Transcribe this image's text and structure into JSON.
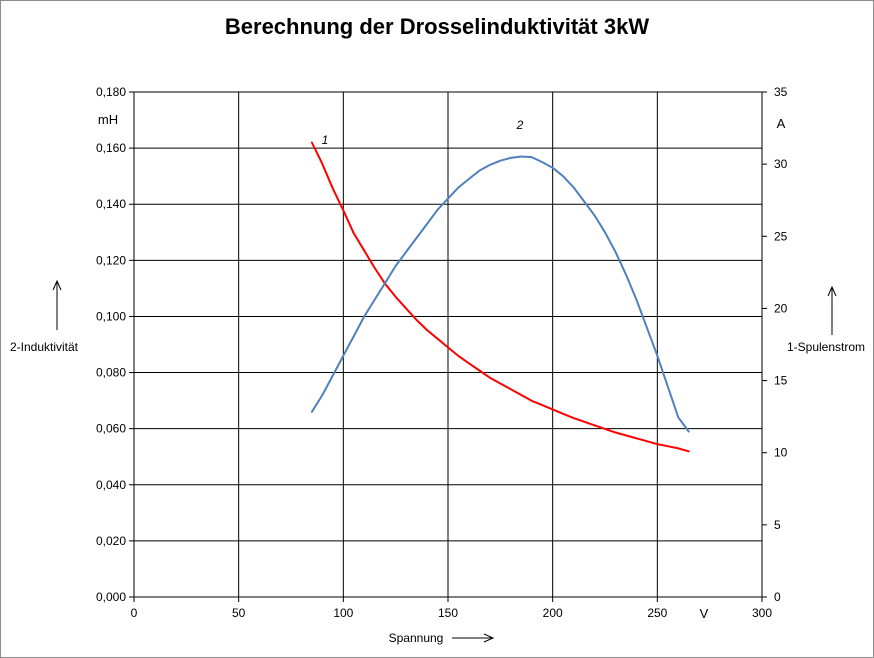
{
  "chart_data": {
    "type": "line",
    "title": "Berechnung der Drosselinduktivität 3kW",
    "xlabel": "Spannung",
    "x_unit": "V",
    "ylabel_left": "2-Induktivität",
    "y_unit_left": "mH",
    "ylabel_right": "1-Spulenstrom",
    "y_unit_right": "A",
    "xlim": [
      0,
      300
    ],
    "ylim_left": [
      0,
      0.18
    ],
    "ylim_right": [
      0,
      35
    ],
    "x_ticks": [
      "0",
      "50",
      "100",
      "150",
      "200",
      "250",
      "300"
    ],
    "y_ticks_left": [
      "0,000",
      "0,020",
      "0,040",
      "0,060",
      "0,080",
      "0,100",
      "0,120",
      "0,140",
      "0,160",
      "0,180"
    ],
    "y_ticks_right": [
      "0",
      "5",
      "10",
      "15",
      "20",
      "25",
      "30",
      "35"
    ],
    "grid": true,
    "series": [
      {
        "name": "1",
        "color": "#ff0000",
        "axis": "right",
        "x": [
          85,
          90,
          95,
          100,
          105,
          110,
          115,
          120,
          125,
          130,
          135,
          140,
          145,
          150,
          155,
          160,
          165,
          170,
          175,
          180,
          185,
          190,
          195,
          200,
          205,
          210,
          215,
          220,
          225,
          230,
          235,
          240,
          245,
          250,
          255,
          260,
          265
        ],
        "values": [
          31.5,
          30.0,
          28.3,
          26.8,
          25.2,
          24.0,
          22.8,
          21.7,
          20.8,
          20.0,
          19.2,
          18.5,
          17.9,
          17.3,
          16.7,
          16.2,
          15.7,
          15.2,
          14.8,
          14.4,
          14.0,
          13.6,
          13.3,
          13.0,
          12.7,
          12.4,
          12.15,
          11.9,
          11.65,
          11.4,
          11.2,
          11.0,
          10.8,
          10.6,
          10.45,
          10.3,
          10.1
        ]
      },
      {
        "name": "2",
        "color": "#4f81bd",
        "axis": "left",
        "x": [
          85,
          90,
          95,
          100,
          105,
          110,
          115,
          120,
          125,
          130,
          135,
          140,
          145,
          150,
          155,
          160,
          165,
          170,
          175,
          180,
          185,
          190,
          195,
          200,
          205,
          210,
          215,
          220,
          225,
          230,
          235,
          240,
          245,
          250,
          255,
          260,
          265
        ],
        "values": [
          0.066,
          0.072,
          0.079,
          0.086,
          0.093,
          0.1,
          0.106,
          0.112,
          0.118,
          0.123,
          0.128,
          0.133,
          0.138,
          0.142,
          0.146,
          0.149,
          0.152,
          0.154,
          0.1555,
          0.1565,
          0.157,
          0.1568,
          0.155,
          0.153,
          0.15,
          0.146,
          0.141,
          0.136,
          0.13,
          0.123,
          0.115,
          0.106,
          0.096,
          0.086,
          0.075,
          0.064,
          0.059
        ]
      }
    ]
  }
}
